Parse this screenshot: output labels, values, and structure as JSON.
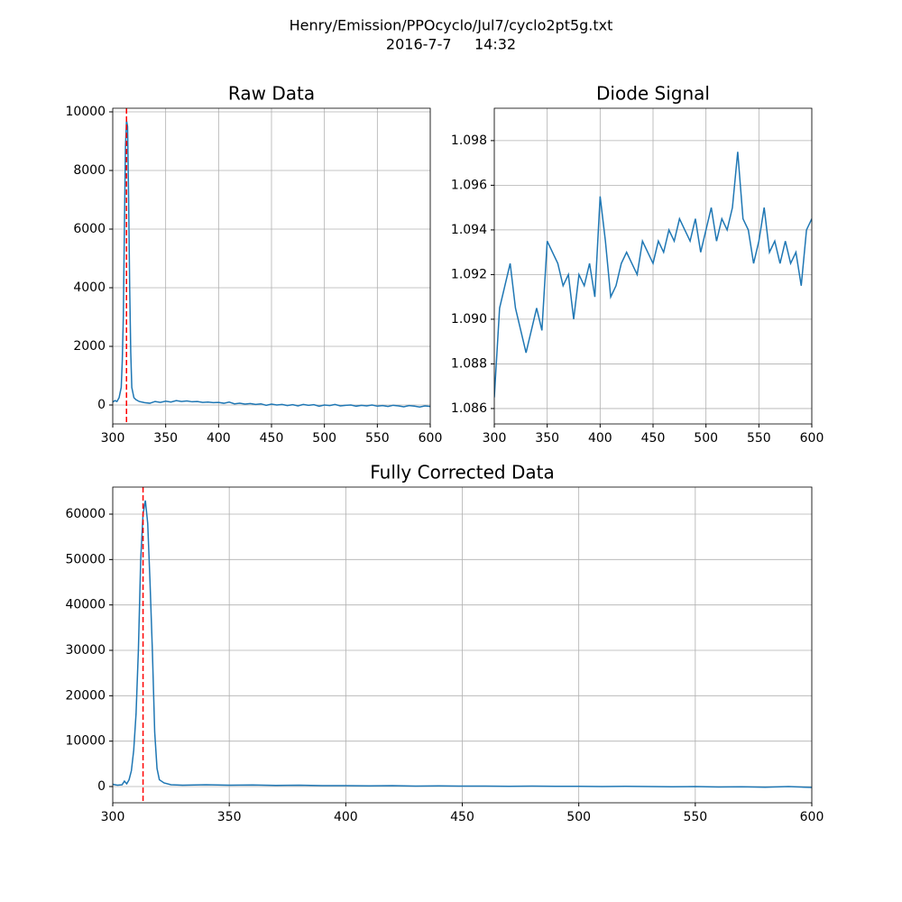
{
  "suptitle": [
    "Henry/Emission/PPOcyclo/Jul7/cyclo2pt5g.txt",
    "2016-7-7     14:32"
  ],
  "chart_data": [
    {
      "type": "line",
      "title": "Raw Data",
      "color": "#1f77b4",
      "grid": true,
      "x": [
        300,
        302,
        304,
        306,
        308,
        309,
        310,
        311,
        312,
        313,
        314,
        315,
        316,
        317,
        318,
        320,
        322,
        325,
        330,
        335,
        340,
        345,
        350,
        355,
        360,
        365,
        370,
        375,
        380,
        385,
        390,
        395,
        400,
        405,
        410,
        415,
        420,
        425,
        430,
        435,
        440,
        445,
        450,
        455,
        460,
        465,
        470,
        475,
        480,
        485,
        490,
        495,
        500,
        505,
        510,
        515,
        520,
        525,
        530,
        535,
        540,
        545,
        550,
        555,
        560,
        565,
        570,
        575,
        580,
        585,
        590,
        595,
        600
      ],
      "values": [
        100,
        150,
        120,
        250,
        600,
        1500,
        3000,
        6000,
        8800,
        9700,
        9500,
        7000,
        4000,
        1800,
        600,
        250,
        180,
        120,
        80,
        60,
        120,
        90,
        130,
        100,
        150,
        120,
        140,
        110,
        120,
        90,
        100,
        80,
        90,
        60,
        100,
        40,
        60,
        30,
        50,
        20,
        40,
        -10,
        30,
        0,
        20,
        -20,
        10,
        -30,
        20,
        -10,
        10,
        -40,
        0,
        -20,
        20,
        -30,
        -10,
        0,
        -40,
        -10,
        -30,
        0,
        -40,
        -20,
        -50,
        -10,
        -30,
        -60,
        -20,
        -40,
        -70,
        -30,
        -50
      ],
      "xlim": [
        300,
        600
      ],
      "ylim": [
        -646,
        10123
      ],
      "xticks": [
        300,
        350,
        400,
        450,
        500,
        550,
        600
      ],
      "yticks": [
        0,
        2000,
        4000,
        6000,
        8000,
        10000
      ],
      "vline": {
        "x": 313,
        "color": "#ff0000"
      }
    },
    {
      "type": "line",
      "title": "Diode Signal",
      "color": "#1f77b4",
      "grid": true,
      "x": [
        300,
        305,
        310,
        315,
        320,
        325,
        330,
        335,
        340,
        345,
        350,
        355,
        360,
        365,
        370,
        375,
        380,
        385,
        390,
        395,
        400,
        405,
        410,
        415,
        420,
        425,
        430,
        435,
        440,
        445,
        450,
        455,
        460,
        465,
        470,
        475,
        480,
        485,
        490,
        495,
        500,
        505,
        510,
        515,
        520,
        525,
        530,
        535,
        540,
        545,
        550,
        555,
        560,
        565,
        570,
        575,
        580,
        585,
        590,
        595,
        600
      ],
      "values": [
        1.0865,
        1.0905,
        1.0915,
        1.0925,
        1.0905,
        1.0895,
        1.0885,
        1.0895,
        1.0905,
        1.0895,
        1.0935,
        1.093,
        1.0925,
        1.0915,
        1.092,
        1.09,
        1.092,
        1.0915,
        1.0925,
        1.091,
        1.0955,
        1.0935,
        1.091,
        1.0915,
        1.0925,
        1.093,
        1.0925,
        1.092,
        1.0935,
        1.093,
        1.0925,
        1.0935,
        1.093,
        1.094,
        1.0935,
        1.0945,
        1.094,
        1.0935,
        1.0945,
        1.093,
        1.094,
        1.095,
        1.0935,
        1.0945,
        1.094,
        1.095,
        1.0975,
        1.0945,
        1.094,
        1.0925,
        1.0935,
        1.095,
        1.093,
        1.0935,
        1.0925,
        1.0935,
        1.0925,
        1.093,
        1.0915,
        1.094,
        1.0945
      ],
      "xlim": [
        300,
        600
      ],
      "ylim": [
        1.08531,
        1.09945
      ],
      "xticks": [
        300,
        350,
        400,
        450,
        500,
        550,
        600
      ],
      "yticks": [
        1.086,
        1.088,
        {
          "value": 1.09,
          "label": "1.090"
        },
        1.092,
        1.094,
        1.096,
        1.098
      ]
    },
    {
      "type": "line",
      "title": "Fully Corrected Data",
      "color": "#1f77b4",
      "grid": true,
      "x": [
        300,
        302,
        304,
        305,
        306,
        307,
        308,
        309,
        310,
        311,
        312,
        313,
        314,
        315,
        316,
        317,
        318,
        319,
        320,
        322,
        325,
        330,
        340,
        350,
        360,
        370,
        380,
        390,
        400,
        410,
        420,
        430,
        440,
        450,
        460,
        470,
        480,
        490,
        500,
        510,
        520,
        530,
        540,
        550,
        560,
        570,
        580,
        590,
        600
      ],
      "values": [
        500,
        300,
        400,
        1200,
        600,
        1500,
        3500,
        8000,
        16000,
        30000,
        50000,
        60000,
        63000,
        58000,
        45000,
        30000,
        12000,
        4000,
        1500,
        800,
        400,
        300,
        400,
        300,
        350,
        250,
        300,
        200,
        200,
        150,
        200,
        100,
        150,
        100,
        100,
        50,
        100,
        50,
        50,
        0,
        50,
        0,
        -50,
        0,
        -100,
        -50,
        -150,
        0,
        -200
      ],
      "xlim": [
        300,
        600
      ],
      "ylim": [
        -3576,
        65960
      ],
      "xticks": [
        300,
        350,
        400,
        450,
        500,
        550,
        600
      ],
      "yticks": [
        0,
        10000,
        20000,
        30000,
        40000,
        50000,
        60000
      ],
      "vline": {
        "x": 313,
        "color": "#ff0000"
      }
    }
  ]
}
